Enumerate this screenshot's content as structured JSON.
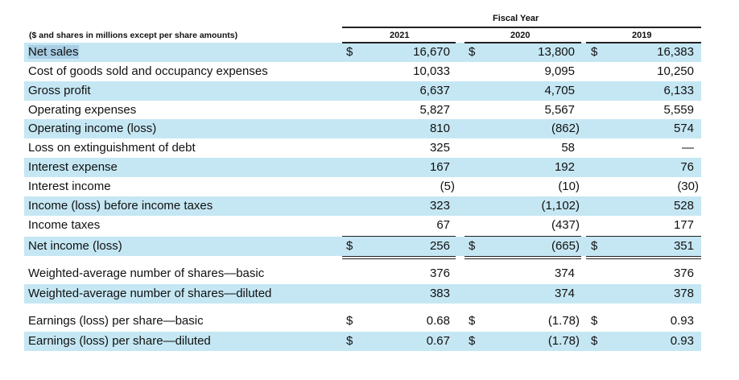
{
  "header": {
    "units_note": "($ and shares in millions except per share amounts)",
    "group_label": "Fiscal Year",
    "years": [
      "2021",
      "2020",
      "2019"
    ]
  },
  "colors": {
    "row_shade": "#c5e7f3",
    "selection": "#a9cfe6"
  },
  "rows": [
    {
      "label": "Net sales",
      "dollar": true,
      "values": [
        "16,670",
        "13,800",
        "16,383"
      ],
      "shaded": true,
      "selected": true
    },
    {
      "label": "Cost of goods sold and occupancy expenses",
      "values": [
        "10,033",
        "9,095",
        "10,250"
      ],
      "rule_below": "single"
    },
    {
      "label": "Gross profit",
      "values": [
        "6,637",
        "4,705",
        "6,133"
      ],
      "shaded": true
    },
    {
      "label": "Operating expenses",
      "values": [
        "5,827",
        "5,567",
        "5,559"
      ],
      "rule_below": "single"
    },
    {
      "label": "Operating income (loss)",
      "values": [
        "810",
        "(862)",
        "574"
      ],
      "shaded": true
    },
    {
      "label": "Loss on extinguishment of debt",
      "values": [
        "325",
        "58",
        "—"
      ]
    },
    {
      "label": "Interest expense",
      "values": [
        "167",
        "192",
        "76"
      ],
      "shaded": true
    },
    {
      "label": "Interest income",
      "values": [
        "(5)",
        "(10)",
        "(30)"
      ],
      "rule_below": "single"
    },
    {
      "label": "Income (loss) before income taxes",
      "values": [
        "323",
        "(1,102)",
        "528"
      ],
      "shaded": true
    },
    {
      "label": "Income taxes",
      "values": [
        "67",
        "(437)",
        "177"
      ],
      "rule_below": "single"
    },
    {
      "label": "Net income (loss)",
      "dollar": true,
      "values": [
        "256",
        "(665)",
        "351"
      ],
      "shaded": true,
      "rule_below": "double"
    },
    {
      "label": "Weighted-average number of shares—basic",
      "values": [
        "376",
        "374",
        "376"
      ]
    },
    {
      "label": "Weighted-average number of shares—diluted",
      "values": [
        "383",
        "374",
        "378"
      ],
      "shaded": true
    },
    {
      "label": "Earnings (loss) per share—basic",
      "dollar": true,
      "values": [
        "0.68",
        "(1.78)",
        "0.93"
      ]
    },
    {
      "label": "Earnings (loss) per share—diluted",
      "dollar": true,
      "values": [
        "0.67",
        "(1.78)",
        "0.93"
      ],
      "shaded": true
    }
  ]
}
